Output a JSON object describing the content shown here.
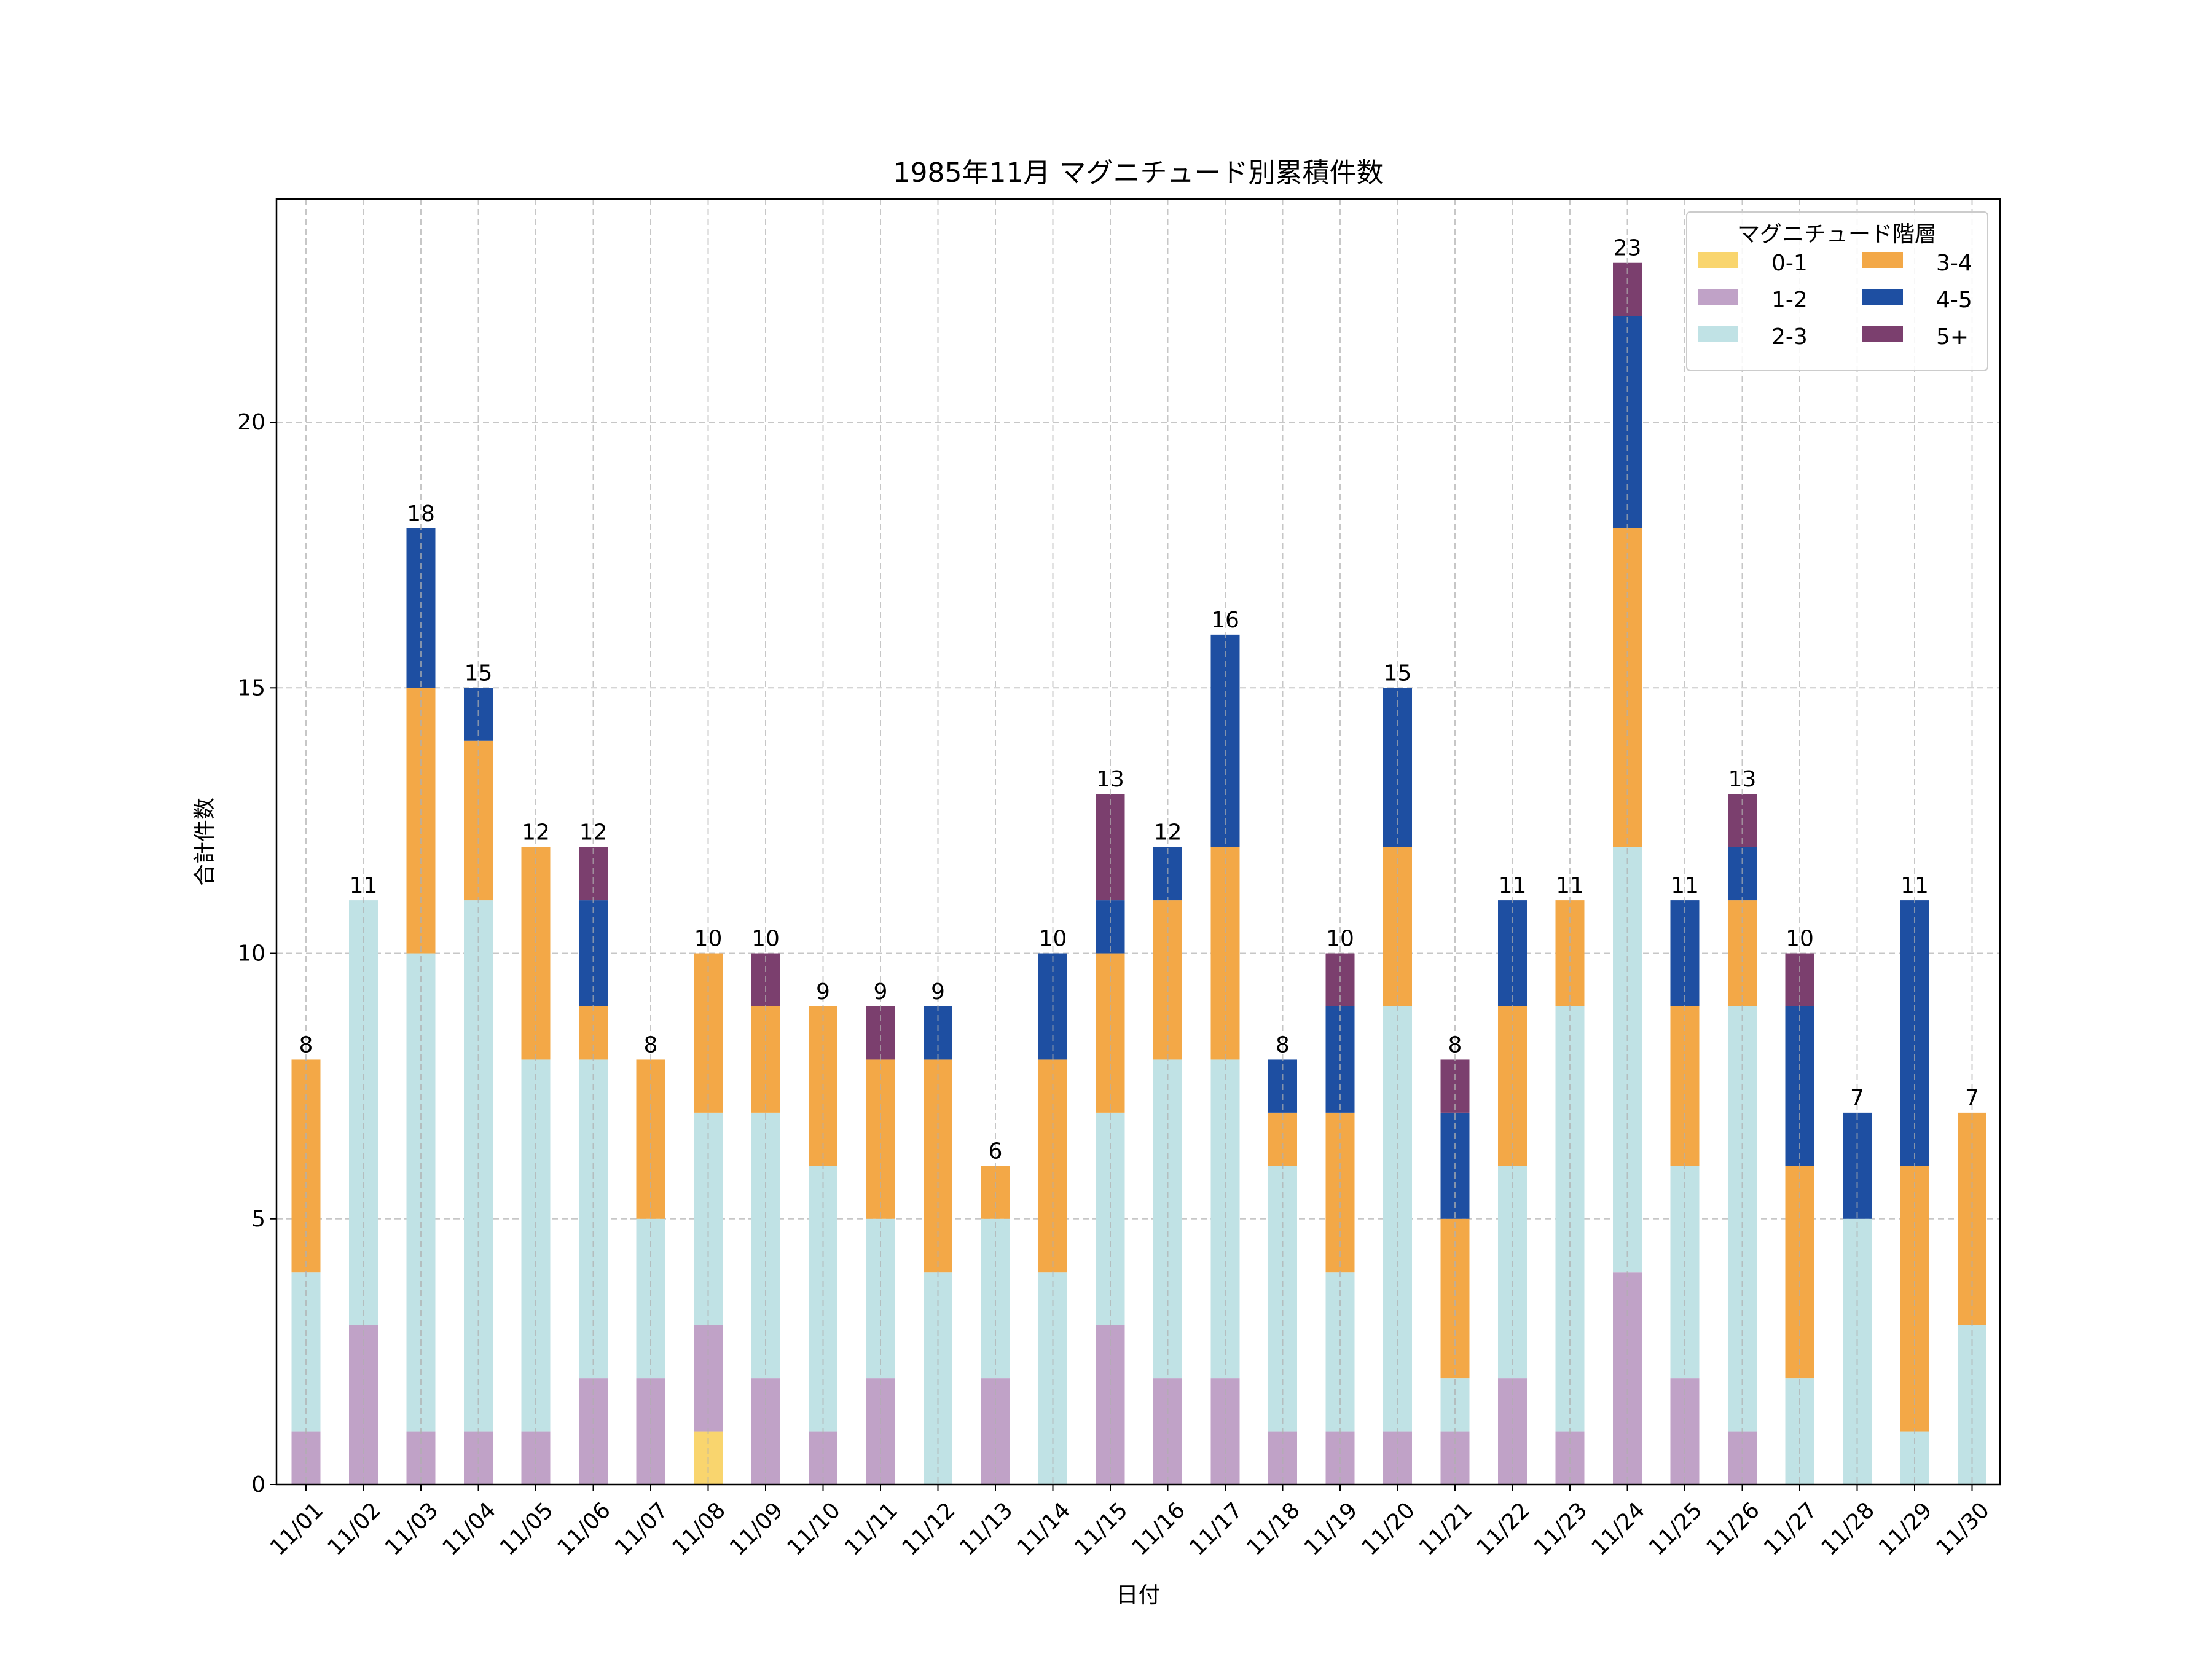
{
  "chart_data": {
    "type": "bar",
    "stacked": true,
    "title": "1985年11月 マグニチュード別累積件数",
    "xlabel": "日付",
    "ylabel": "合計件数",
    "ylim": [
      0,
      24.2
    ],
    "yticks": [
      0,
      5,
      10,
      15,
      20
    ],
    "grid": true,
    "legend_title": "マグニチュード階層",
    "legend_position": "top-right",
    "categories": [
      "11/01",
      "11/02",
      "11/03",
      "11/04",
      "11/05",
      "11/06",
      "11/07",
      "11/08",
      "11/09",
      "11/10",
      "11/11",
      "11/12",
      "11/13",
      "11/14",
      "11/15",
      "11/16",
      "11/17",
      "11/18",
      "11/19",
      "11/20",
      "11/21",
      "11/22",
      "11/23",
      "11/24",
      "11/25",
      "11/26",
      "11/27",
      "11/28",
      "11/29",
      "11/30"
    ],
    "series": [
      {
        "name": "0-1",
        "color": "#F9D56E",
        "values": [
          0,
          0,
          0,
          0,
          0,
          0,
          0,
          1,
          0,
          0,
          0,
          0,
          0,
          0,
          0,
          0,
          0,
          0,
          0,
          0,
          0,
          0,
          0,
          0,
          0,
          0,
          0,
          0,
          0,
          0
        ]
      },
      {
        "name": "1-2",
        "color": "#C0A2C7",
        "values": [
          1,
          3,
          1,
          1,
          1,
          2,
          2,
          2,
          2,
          1,
          2,
          0,
          2,
          0,
          3,
          2,
          2,
          1,
          1,
          1,
          1,
          2,
          1,
          4,
          2,
          1,
          0,
          0,
          0,
          0
        ]
      },
      {
        "name": "2-3",
        "color": "#C0E2E5",
        "values": [
          3,
          8,
          9,
          10,
          7,
          6,
          3,
          4,
          5,
          5,
          3,
          4,
          3,
          4,
          4,
          6,
          6,
          5,
          3,
          8,
          1,
          4,
          8,
          8,
          4,
          8,
          2,
          5,
          1,
          3
        ]
      },
      {
        "name": "3-4",
        "color": "#F3A847",
        "values": [
          4,
          0,
          5,
          3,
          4,
          1,
          3,
          3,
          2,
          3,
          3,
          4,
          1,
          4,
          3,
          3,
          4,
          1,
          3,
          3,
          3,
          3,
          2,
          6,
          3,
          2,
          4,
          0,
          5,
          4
        ]
      },
      {
        "name": "4-5",
        "color": "#1E4FA2",
        "values": [
          0,
          0,
          3,
          1,
          0,
          2,
          0,
          0,
          0,
          0,
          0,
          1,
          0,
          2,
          1,
          1,
          4,
          1,
          2,
          3,
          2,
          2,
          0,
          4,
          2,
          1,
          3,
          2,
          5,
          0
        ]
      },
      {
        "name": "5+",
        "color": "#7B3F6E",
        "values": [
          0,
          0,
          0,
          0,
          0,
          1,
          0,
          0,
          1,
          0,
          1,
          0,
          0,
          0,
          2,
          0,
          0,
          0,
          1,
          0,
          1,
          0,
          0,
          1,
          0,
          1,
          1,
          0,
          0,
          0
        ]
      }
    ],
    "totals": [
      "8",
      "11",
      "18",
      "15",
      "12",
      "12",
      "8",
      "10",
      "10",
      "9",
      "9",
      "9",
      "6",
      "10",
      "13",
      "12",
      "16",
      "8",
      "10",
      "15",
      "8",
      "11",
      "11",
      "23",
      "11",
      "13",
      "10",
      "7",
      "11",
      "7"
    ]
  }
}
